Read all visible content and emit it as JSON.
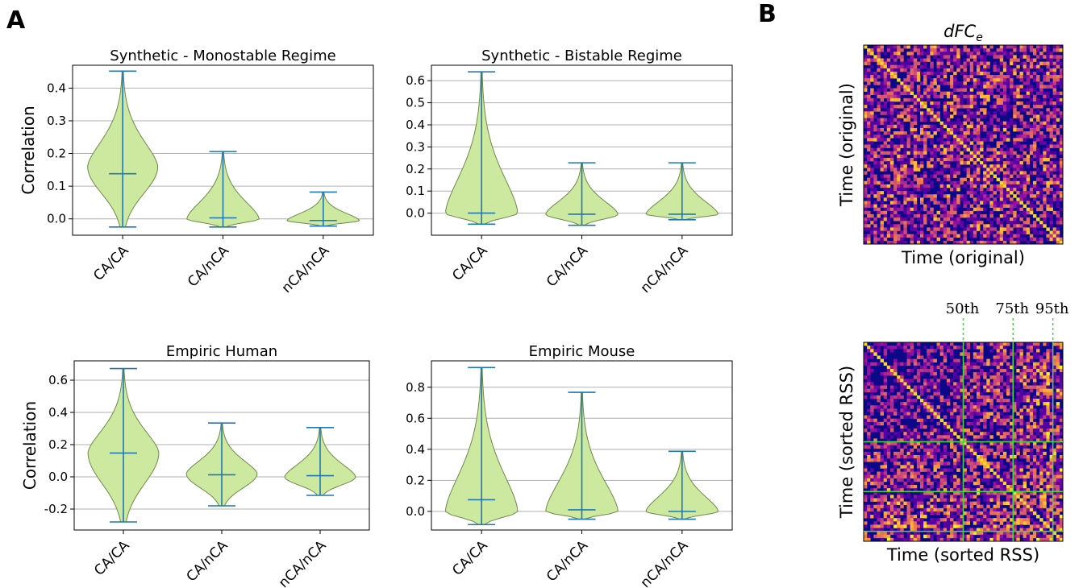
{
  "panel_labels": {
    "a": "A",
    "b": "B"
  },
  "colors": {
    "violin_fill": "#cde9a0",
    "violin_edge": "#6d8a4a",
    "stat_line": "#1f77b4",
    "grid": "#b0b0b0",
    "threshold_line": "#3ddc3d"
  },
  "chart_data": [
    {
      "type": "violin",
      "title": "Synthetic - Monostable Regime",
      "ylabel": "Correlation",
      "categories": [
        "CA/CA",
        "CA/nCA",
        "nCA/nCA"
      ],
      "yticks": [
        0.0,
        0.1,
        0.2,
        0.3,
        0.4
      ],
      "ytick_labels": [
        "0.0",
        "0.1",
        "0.2",
        "0.3",
        "0.4"
      ],
      "ylim": [
        -0.05,
        0.47
      ],
      "grid": "horizontal",
      "violins": [
        {
          "category": "CA/CA",
          "min": -0.025,
          "median": 0.138,
          "max": 0.452,
          "peak": 0.16,
          "width": 0.7
        },
        {
          "category": "CA/nCA",
          "min": -0.025,
          "median": 0.003,
          "max": 0.206,
          "peak": 0.0,
          "width": 0.72
        },
        {
          "category": "nCA/nCA",
          "min": -0.022,
          "median": -0.005,
          "max": 0.082,
          "peak": -0.005,
          "width": 0.72
        }
      ]
    },
    {
      "type": "violin",
      "title": "Synthetic - Bistable Regime",
      "ylabel": "",
      "categories": [
        "CA/CA",
        "CA/nCA",
        "nCA/nCA"
      ],
      "yticks": [
        0.0,
        0.1,
        0.2,
        0.3,
        0.4,
        0.5,
        0.6
      ],
      "ytick_labels": [
        "0.0",
        "0.1",
        "0.2",
        "0.3",
        "0.4",
        "0.5",
        "0.6"
      ],
      "ylim": [
        -0.1,
        0.67
      ],
      "grid": "horizontal",
      "violins": [
        {
          "category": "CA/CA",
          "min": -0.05,
          "median": 0.0,
          "max": 0.64,
          "peak": 0.0,
          "width": 0.72
        },
        {
          "category": "CA/nCA",
          "min": -0.055,
          "median": -0.005,
          "max": 0.228,
          "peak": -0.005,
          "width": 0.72
        },
        {
          "category": "nCA/nCA",
          "min": -0.03,
          "median": -0.005,
          "max": 0.228,
          "peak": -0.005,
          "width": 0.72
        }
      ]
    },
    {
      "type": "violin",
      "title": "Empiric Human",
      "ylabel": "Correlation",
      "categories": [
        "CA/CA",
        "CA/nCA",
        "nCA/nCA"
      ],
      "yticks": [
        -0.2,
        0.0,
        0.2,
        0.4,
        0.6
      ],
      "ytick_labels": [
        "-0.2",
        "0.0",
        "0.2",
        "0.4",
        "0.6"
      ],
      "ylim": [
        -0.33,
        0.72
      ],
      "grid": "horizontal",
      "violins": [
        {
          "category": "CA/CA",
          "min": -0.28,
          "median": 0.148,
          "max": 0.672,
          "peak": 0.15,
          "width": 0.72
        },
        {
          "category": "CA/nCA",
          "min": -0.18,
          "median": 0.013,
          "max": 0.334,
          "peak": 0.02,
          "width": 0.72
        },
        {
          "category": "nCA/nCA",
          "min": -0.115,
          "median": 0.007,
          "max": 0.306,
          "peak": 0.0,
          "width": 0.72
        }
      ]
    },
    {
      "type": "violin",
      "title": "Empiric Mouse",
      "ylabel": "",
      "categories": [
        "CA/CA",
        "CA/nCA",
        "nCA/nCA"
      ],
      "yticks": [
        0.0,
        0.2,
        0.4,
        0.6,
        0.8
      ],
      "ytick_labels": [
        "0.0",
        "0.2",
        "0.4",
        "0.6",
        "0.8"
      ],
      "ylim": [
        -0.12,
        0.97
      ],
      "grid": "horizontal",
      "violins": [
        {
          "category": "CA/CA",
          "min": -0.085,
          "median": 0.075,
          "max": 0.927,
          "peak": 0.0,
          "width": 0.72
        },
        {
          "category": "CA/nCA",
          "min": -0.05,
          "median": 0.01,
          "max": 0.767,
          "peak": 0.0,
          "width": 0.72
        },
        {
          "category": "nCA/nCA",
          "min": -0.05,
          "median": 0.0,
          "max": 0.387,
          "peak": 0.0,
          "width": 0.72
        }
      ]
    },
    {
      "type": "heatmap",
      "title_base": "dFC",
      "title_sub": "e",
      "xlabel": "Time (original)",
      "ylabel": "Time (original)",
      "colormap": "plasma",
      "size": 60
    },
    {
      "type": "heatmap",
      "title": "",
      "xlabel": "Time (sorted RSS)",
      "ylabel": "Time (sorted RSS)",
      "colormap": "plasma",
      "size": 60,
      "thresholds": [
        {
          "label": "50th",
          "fraction": 0.5
        },
        {
          "label": "75th",
          "fraction": 0.75
        },
        {
          "label": "95th",
          "fraction": 0.95
        }
      ]
    }
  ]
}
